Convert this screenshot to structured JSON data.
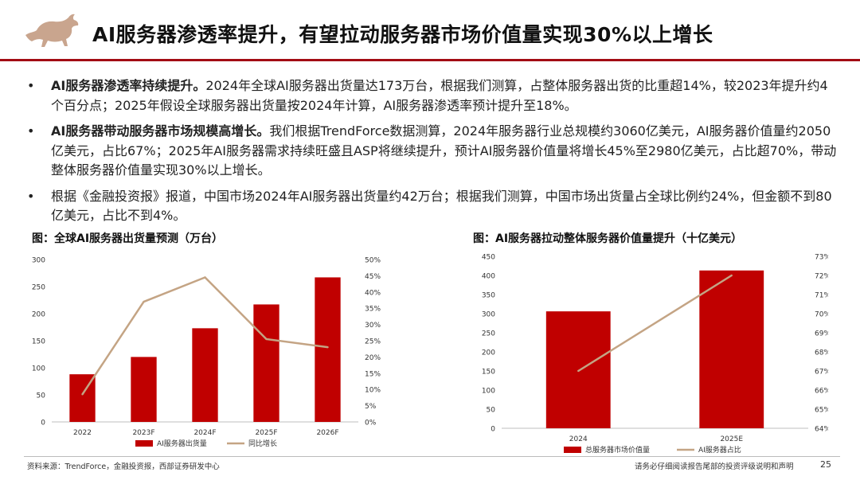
{
  "header": {
    "title": "AI服务器渗透率提升，有望拉动服务器市场价值量实现30%以上增长",
    "logo_icon": "bull-logo-icon",
    "accent_color": "#a30c14"
  },
  "bullets": [
    {
      "marker": "•",
      "lead": "AI服务器渗透率持续提升。",
      "text": "2024年全球AI服务器出货量达173万台，根据我们测算，占整体服务器出货的比重超14%，较2023年提升约4个百分点；2025年假设全球服务器出货量按2024年计算，AI服务器渗透率预计提升至18%。"
    },
    {
      "marker": "•",
      "lead": "AI服务器带动服务器市场规模高增长。",
      "text": "我们根据TrendForce数据测算，2024年服务器行业总规模约3060亿美元，AI服务器价值量约2050亿美元，占比67%；2025年AI服务器需求持续旺盛且ASP将继续提升，预计AI服务器价值量将增长45%至2980亿美元，占比超70%，带动整体服务器价值量实现30%以上增长。"
    },
    {
      "marker": "•",
      "lead": "",
      "text": "根据《金融投资报》报道，中国市场2024年AI服务器出货量约42万台；根据我们测算，中国市场出货量占全球比例约24%，但金额不到80亿美元，占比不到4%。"
    }
  ],
  "chart_data": [
    {
      "type": "bar",
      "title": "图：全球AI服务器出货量预测（万台）",
      "categories": [
        "2022",
        "2023F",
        "2024F",
        "2025F",
        "2026F"
      ],
      "series": [
        {
          "name": "AI服务器出货量",
          "type": "bar",
          "axis": "left",
          "color": "#c00000",
          "values": [
            88,
            120,
            173,
            217,
            267
          ]
        },
        {
          "name": "同比增长",
          "type": "line",
          "axis": "right",
          "color": "#c4a484",
          "values": [
            8.5,
            37,
            44.5,
            25.5,
            23
          ]
        }
      ],
      "ylim_left": [
        0,
        300
      ],
      "yticks_left": [
        "0",
        "50",
        "100",
        "150",
        "200",
        "250",
        "300"
      ],
      "ylim_right": [
        0,
        50
      ],
      "yticks_right": [
        "0%",
        "5%",
        "10%",
        "15%",
        "20%",
        "25%",
        "30%",
        "35%",
        "40%",
        "45%",
        "50%"
      ],
      "legend_position": "bottom"
    },
    {
      "type": "bar",
      "title": "图：AI服务器拉动整体服务器价值量提升（十亿美元）",
      "categories": [
        "2024",
        "2025E"
      ],
      "series": [
        {
          "name": "总服务器市场价值量",
          "type": "bar",
          "axis": "left",
          "color": "#c00000",
          "values": [
            306,
            413
          ]
        },
        {
          "name": "AI服务器占比",
          "type": "line",
          "axis": "right",
          "color": "#c4a484",
          "values": [
            67,
            72
          ]
        }
      ],
      "ylim_left": [
        0,
        450
      ],
      "yticks_left": [
        "0",
        "50",
        "100",
        "150",
        "200",
        "250",
        "300",
        "350",
        "400",
        "450"
      ],
      "ylim_right": [
        64,
        73
      ],
      "yticks_right": [
        "64%",
        "65%",
        "66%",
        "67%",
        "68%",
        "69%",
        "70%",
        "71%",
        "72%",
        "73%"
      ],
      "legend_position": "bottom"
    }
  ],
  "footer": {
    "source": "资料来源：TrendForce，金融投资报，西部证券研发中心",
    "disclaimer": "请务必仔细阅读报告尾部的投资评级说明和声明",
    "page": "25"
  }
}
